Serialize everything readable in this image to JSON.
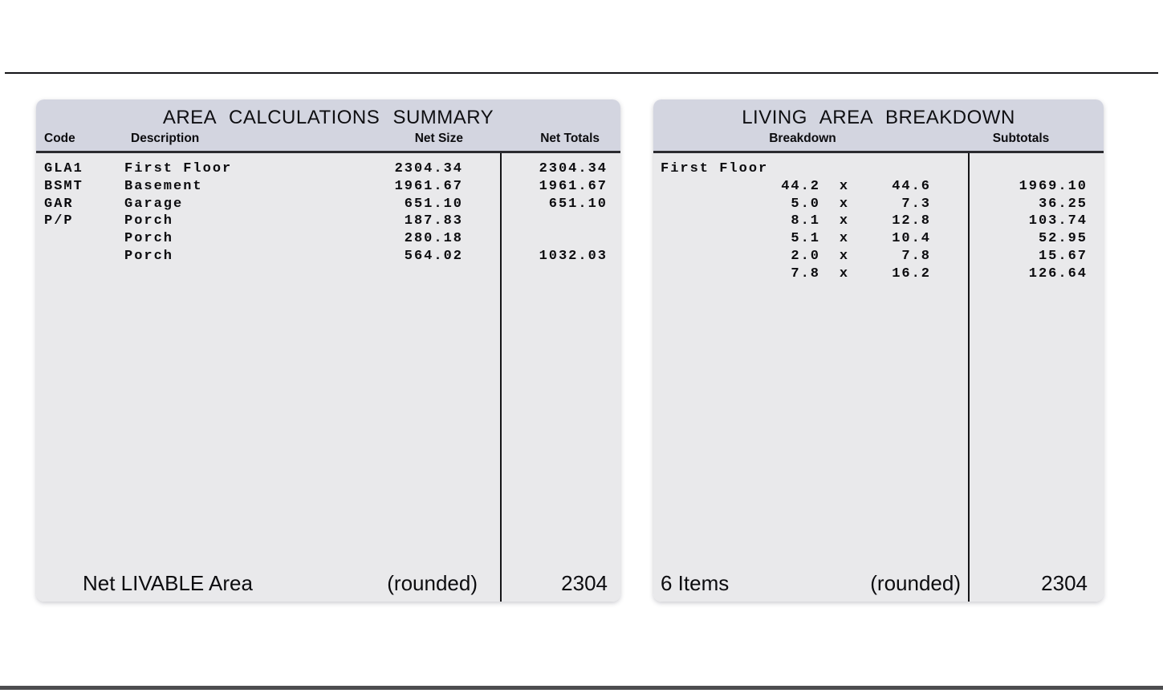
{
  "colors": {
    "header_band": "#d3d5e0",
    "panel_body": "#e9e9eb",
    "rule_dark": "#2b2b30",
    "line_black": "#141417"
  },
  "left_panel": {
    "title": "AREA CALCULATIONS SUMMARY",
    "columns": {
      "code": "Code",
      "description": "Description",
      "net_size": "Net Size",
      "net_totals": "Net Totals"
    },
    "rows": [
      {
        "code": "GLA1",
        "description": "First Floor",
        "net_size": "2304.34",
        "net_total": "2304.34"
      },
      {
        "code": "BSMT",
        "description": "Basement",
        "net_size": "1961.67",
        "net_total": "1961.67"
      },
      {
        "code": "GAR",
        "description": "Garage",
        "net_size": "651.10",
        "net_total": "651.10"
      },
      {
        "code": "P/P",
        "description": "Porch",
        "net_size": "187.83",
        "net_total": ""
      },
      {
        "code": "",
        "description": "Porch",
        "net_size": "280.18",
        "net_total": ""
      },
      {
        "code": "",
        "description": "Porch",
        "net_size": "564.02",
        "net_total": "1032.03"
      }
    ],
    "footer": {
      "label": "Net LIVABLE Area",
      "note": "(rounded)",
      "total": "2304"
    }
  },
  "right_panel": {
    "title": "LIVING AREA BREAKDOWN",
    "columns": {
      "breakdown": "Breakdown",
      "subtotals": "Subtotals"
    },
    "group_label": "First Floor",
    "rows": [
      {
        "dim1": "44.2",
        "op": "x",
        "dim2": "44.6",
        "subtotal": "1969.10"
      },
      {
        "dim1": "5.0",
        "op": "x",
        "dim2": "7.3",
        "subtotal": "36.25"
      },
      {
        "dim1": "8.1",
        "op": "x",
        "dim2": "12.8",
        "subtotal": "103.74"
      },
      {
        "dim1": "5.1",
        "op": "x",
        "dim2": "10.4",
        "subtotal": "52.95"
      },
      {
        "dim1": "2.0",
        "op": "x",
        "dim2": "7.8",
        "subtotal": "15.67"
      },
      {
        "dim1": "7.8",
        "op": "x",
        "dim2": "16.2",
        "subtotal": "126.64"
      }
    ],
    "footer": {
      "label": "6 Items",
      "note": "(rounded)",
      "total": "2304"
    }
  }
}
